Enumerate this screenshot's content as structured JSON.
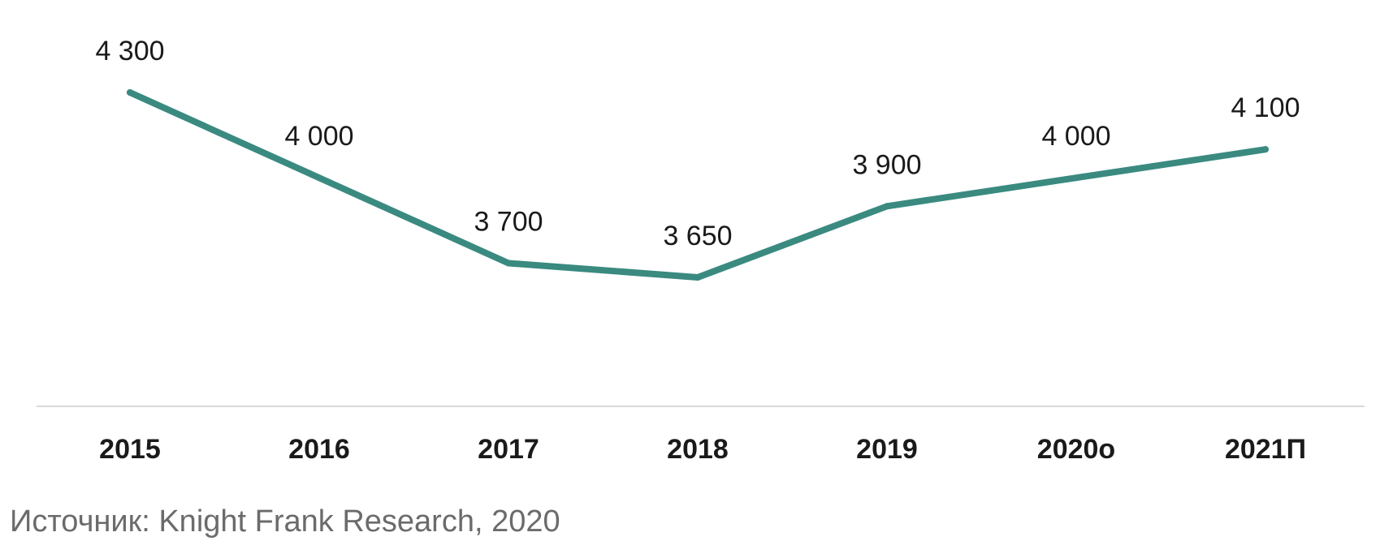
{
  "chart_data": {
    "type": "line",
    "categories": [
      "2015",
      "2016",
      "2017",
      "2018",
      "2019",
      "2020о",
      "2021П"
    ],
    "series": [
      {
        "values": [
          4300,
          4000,
          3700,
          3650,
          3900,
          4000,
          4100
        ],
        "data_labels": [
          "4 300",
          "4 000",
          "3 700",
          "3 650",
          "3 900",
          "4 000",
          "4 100"
        ],
        "color": "#3a8a80"
      }
    ],
    "ylim": [
      3200,
      4500
    ],
    "grid": false,
    "legend": "none",
    "axis_line_color": "#d9d9d9"
  },
  "source": "Источник: Knight Frank Research, 2020"
}
